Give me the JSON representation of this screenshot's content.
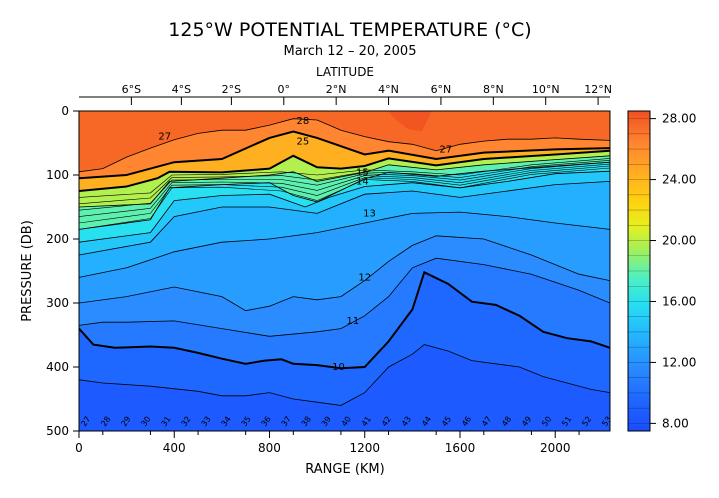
{
  "chart_data": {
    "type": "heatmap",
    "title": "125°W POTENTIAL TEMPERATURE (°C)",
    "subtitle": "March 12 – 20, 2005",
    "top_axis_label": "LATITUDE",
    "top_ticks": [
      "6°S",
      "4°S",
      "2°S",
      "0°",
      "2°N",
      "4°N",
      "6°N",
      "8°N",
      "10°N",
      "12°N"
    ],
    "top_tick_positions_km": [
      220,
      430,
      640,
      860,
      1080,
      1300,
      1520,
      1740,
      1960,
      2180
    ],
    "xlabel": "RANGE (KM)",
    "ylabel": "PRESSURE (DB)",
    "xlim": [
      0,
      2230
    ],
    "ylim": [
      0,
      500
    ],
    "x_ticks": [
      0,
      400,
      800,
      1200,
      1600,
      2000
    ],
    "y_ticks": [
      0,
      100,
      200,
      300,
      400,
      500
    ],
    "colorbar": {
      "min": 7.5,
      "max": 28.5,
      "ticks": [
        "28.00",
        "24.00",
        "20.00",
        "16.00",
        "12.00",
        "8.00"
      ],
      "tick_values": [
        28,
        24,
        20,
        16,
        12,
        8
      ]
    },
    "contour_labels": [
      {
        "text": "27",
        "x": 360,
        "y": 40
      },
      {
        "text": "28",
        "x": 940,
        "y": 16
      },
      {
        "text": "25",
        "x": 940,
        "y": 48
      },
      {
        "text": "27",
        "x": 1540,
        "y": 60
      },
      {
        "text": "15",
        "x": 1190,
        "y": 96
      },
      {
        "text": "14",
        "x": 1190,
        "y": 110
      },
      {
        "text": "13",
        "x": 1220,
        "y": 160
      },
      {
        "text": "12",
        "x": 1200,
        "y": 260
      },
      {
        "text": "11",
        "x": 1150,
        "y": 328
      },
      {
        "text": "10",
        "x": 1090,
        "y": 400
      }
    ],
    "station_labels": [
      "27",
      "28",
      "29",
      "30",
      "31",
      "32",
      "33",
      "34",
      "35",
      "36",
      "37",
      "38",
      "39",
      "40",
      "41",
      "42",
      "43",
      "44",
      "45",
      "46",
      "47",
      "48",
      "49",
      "50",
      "51",
      "52",
      "53"
    ],
    "isotherms": [
      {
        "level": 27,
        "points": [
          [
            0,
            95
          ],
          [
            100,
            90
          ],
          [
            200,
            72
          ],
          [
            300,
            58
          ],
          [
            400,
            45
          ],
          [
            500,
            35
          ],
          [
            600,
            30
          ],
          [
            700,
            30
          ],
          [
            800,
            22
          ],
          [
            900,
            12
          ],
          [
            1000,
            14
          ],
          [
            1100,
            30
          ],
          [
            1200,
            40
          ],
          [
            1300,
            48
          ],
          [
            1400,
            52
          ],
          [
            1500,
            62
          ],
          [
            1600,
            52
          ],
          [
            1700,
            47
          ],
          [
            1800,
            44
          ],
          [
            1900,
            44
          ],
          [
            2000,
            42
          ],
          [
            2100,
            44
          ],
          [
            2230,
            46
          ]
        ]
      },
      {
        "level": 25,
        "points": [
          [
            0,
            105
          ],
          [
            200,
            100
          ],
          [
            400,
            80
          ],
          [
            600,
            75
          ],
          [
            800,
            42
          ],
          [
            900,
            32
          ],
          [
            1000,
            42
          ],
          [
            1100,
            55
          ],
          [
            1200,
            68
          ],
          [
            1300,
            62
          ],
          [
            1500,
            75
          ],
          [
            1700,
            65
          ],
          [
            2000,
            60
          ],
          [
            2230,
            58
          ]
        ]
      },
      {
        "level": 20,
        "points": [
          [
            0,
            125
          ],
          [
            200,
            118
          ],
          [
            330,
            105
          ],
          [
            380,
            95
          ],
          [
            600,
            96
          ],
          [
            800,
            90
          ],
          [
            900,
            70
          ],
          [
            1000,
            88
          ],
          [
            1100,
            90
          ],
          [
            1200,
            86
          ],
          [
            1300,
            74
          ],
          [
            1500,
            85
          ],
          [
            1700,
            75
          ],
          [
            2000,
            68
          ],
          [
            2230,
            62
          ]
        ]
      },
      {
        "level": 18,
        "points": [
          [
            0,
            150
          ],
          [
            300,
            145
          ],
          [
            380,
            110
          ],
          [
            600,
            105
          ],
          [
            800,
            100
          ],
          [
            900,
            95
          ],
          [
            1000,
            110
          ],
          [
            1200,
            96
          ],
          [
            1300,
            84
          ],
          [
            1500,
            92
          ],
          [
            1700,
            84
          ],
          [
            2000,
            76
          ],
          [
            2230,
            70
          ]
        ]
      },
      {
        "level": 16,
        "points": [
          [
            0,
            185
          ],
          [
            300,
            170
          ],
          [
            380,
            120
          ],
          [
            600,
            115
          ],
          [
            800,
            112
          ],
          [
            900,
            132
          ],
          [
            1000,
            142
          ],
          [
            1200,
            106
          ],
          [
            1300,
            96
          ],
          [
            1500,
            102
          ],
          [
            1700,
            94
          ],
          [
            2000,
            86
          ],
          [
            2230,
            80
          ]
        ]
      },
      {
        "level": 15,
        "points": [
          [
            0,
            205
          ],
          [
            300,
            190
          ],
          [
            400,
            140
          ],
          [
            600,
            132
          ],
          [
            800,
            130
          ],
          [
            950,
            150
          ],
          [
            1050,
            135
          ],
          [
            1200,
            118
          ],
          [
            1400,
            112
          ],
          [
            1600,
            120
          ],
          [
            1800,
            110
          ],
          [
            2000,
            98
          ],
          [
            2230,
            94
          ]
        ]
      },
      {
        "level": 14,
        "points": [
          [
            0,
            225
          ],
          [
            300,
            205
          ],
          [
            400,
            165
          ],
          [
            600,
            150
          ],
          [
            800,
            150
          ],
          [
            1000,
            160
          ],
          [
            1200,
            130
          ],
          [
            1400,
            125
          ],
          [
            1600,
            135
          ],
          [
            1800,
            125
          ],
          [
            2000,
            115
          ],
          [
            2230,
            110
          ]
        ]
      },
      {
        "level": 13,
        "points": [
          [
            0,
            260
          ],
          [
            200,
            245
          ],
          [
            400,
            220
          ],
          [
            600,
            205
          ],
          [
            800,
            200
          ],
          [
            1000,
            190
          ],
          [
            1200,
            175
          ],
          [
            1400,
            160
          ],
          [
            1600,
            158
          ],
          [
            1800,
            165
          ],
          [
            2000,
            175
          ],
          [
            2230,
            185
          ]
        ]
      },
      {
        "level": 12,
        "points": [
          [
            0,
            300
          ],
          [
            200,
            290
          ],
          [
            400,
            275
          ],
          [
            600,
            290
          ],
          [
            700,
            312
          ],
          [
            800,
            305
          ],
          [
            900,
            290
          ],
          [
            1000,
            295
          ],
          [
            1100,
            290
          ],
          [
            1200,
            265
          ],
          [
            1300,
            235
          ],
          [
            1400,
            210
          ],
          [
            1500,
            195
          ],
          [
            1700,
            200
          ],
          [
            1900,
            225
          ],
          [
            2100,
            255
          ],
          [
            2230,
            265
          ]
        ]
      },
      {
        "level": 11,
        "points": [
          [
            0,
            335
          ],
          [
            100,
            330
          ],
          [
            200,
            330
          ],
          [
            400,
            328
          ],
          [
            600,
            340
          ],
          [
            800,
            352
          ],
          [
            1000,
            345
          ],
          [
            1100,
            340
          ],
          [
            1200,
            320
          ],
          [
            1300,
            290
          ],
          [
            1400,
            245
          ],
          [
            1500,
            230
          ],
          [
            1700,
            240
          ],
          [
            1900,
            255
          ],
          [
            2100,
            280
          ],
          [
            2230,
            300
          ]
        ]
      },
      {
        "level": 10,
        "points": [
          [
            0,
            340
          ],
          [
            60,
            365
          ],
          [
            150,
            370
          ],
          [
            300,
            368
          ],
          [
            400,
            370
          ],
          [
            500,
            378
          ],
          [
            600,
            387
          ],
          [
            700,
            395
          ],
          [
            780,
            390
          ],
          [
            850,
            388
          ],
          [
            900,
            395
          ],
          [
            1000,
            397
          ],
          [
            1100,
            402
          ],
          [
            1200,
            400
          ],
          [
            1300,
            360
          ],
          [
            1400,
            310
          ],
          [
            1450,
            252
          ],
          [
            1550,
            270
          ],
          [
            1650,
            298
          ],
          [
            1750,
            303
          ],
          [
            1850,
            320
          ],
          [
            1950,
            345
          ],
          [
            2050,
            355
          ],
          [
            2150,
            360
          ],
          [
            2230,
            370
          ]
        ]
      },
      {
        "level": 9,
        "points": [
          [
            0,
            420
          ],
          [
            100,
            425
          ],
          [
            300,
            430
          ],
          [
            500,
            438
          ],
          [
            600,
            445
          ],
          [
            700,
            445
          ],
          [
            800,
            440
          ],
          [
            900,
            450
          ],
          [
            1000,
            455
          ],
          [
            1100,
            460
          ],
          [
            1200,
            440
          ],
          [
            1300,
            400
          ],
          [
            1400,
            380
          ],
          [
            1450,
            365
          ],
          [
            1550,
            375
          ],
          [
            1650,
            390
          ],
          [
            1750,
            395
          ],
          [
            1850,
            400
          ],
          [
            1950,
            415
          ],
          [
            2050,
            425
          ],
          [
            2150,
            435
          ],
          [
            2230,
            440
          ]
        ]
      }
    ]
  }
}
